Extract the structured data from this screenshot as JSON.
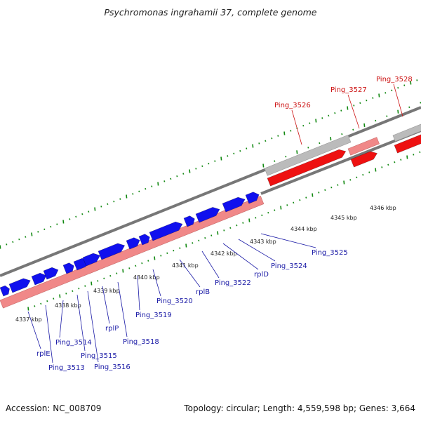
{
  "title": "Psychromonas ingrahamii 37, complete genome",
  "footer": {
    "accession": "Accession: NC_008709",
    "summary": "Topology: circular; Length: 4,559,598 bp; Genes: 3,664"
  },
  "colors": {
    "plus_strand_gene": "#1010ee",
    "minus_strand_gene": "#ee1111",
    "gc_track_primary": "#f08888",
    "gc_track_secondary": "#bbbbbb",
    "backbone": "#777777",
    "tick": "#118811",
    "blue_label": "#1a1aa6",
    "red_label": "#cc1111"
  },
  "scale_labels": [
    "4337 kbp",
    "4338 kbp",
    "4339 kbp",
    "4340 kbp",
    "4341 kbp",
    "4342 kbp",
    "4343 kbp",
    "4344 kbp",
    "4345 kbp",
    "4346 kbp"
  ],
  "gene_labels_blue": [
    "rplE",
    "Ping_3513",
    "Ping_3514",
    "Ping_3515",
    "Ping_3516",
    "rplP",
    "Ping_3518",
    "Ping_3519",
    "Ping_3520",
    "rplB",
    "Ping_3522",
    "rplD",
    "Ping_3524",
    "Ping_3525"
  ],
  "gene_labels_red": [
    "Ping_3526",
    "Ping_3527",
    "Ping_3528"
  ]
}
